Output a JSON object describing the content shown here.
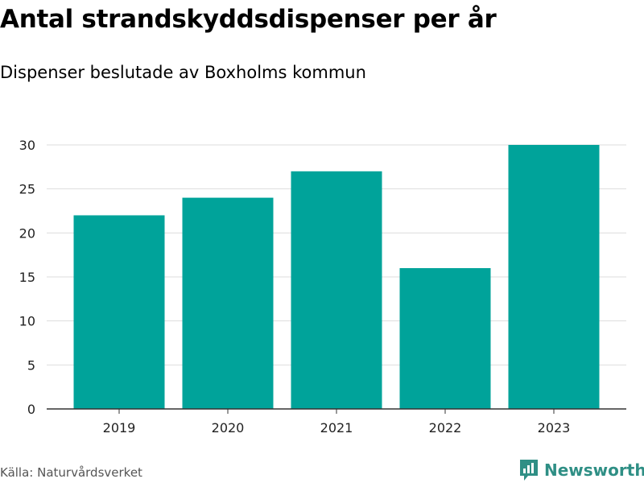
{
  "header": {
    "title": "Antal strandskyddsdispenser per år",
    "subtitle": "Dispenser beslutade av Boxholms kommun"
  },
  "footer": {
    "source": "Källa: Naturvårdsverket",
    "brand": "Newsworthy"
  },
  "colors": {
    "bar": "#00a39a",
    "grid": "#dddddd",
    "axis": "#333333",
    "brand": "#2f8f85"
  },
  "chart_data": {
    "type": "bar",
    "categories": [
      "2019",
      "2020",
      "2021",
      "2022",
      "2023"
    ],
    "values": [
      22,
      24,
      27,
      16,
      30
    ],
    "title": "Antal strandskyddsdispenser per år",
    "subtitle": "Dispenser beslutade av Boxholms kommun",
    "xlabel": "",
    "ylabel": "",
    "ylim": [
      0,
      30
    ],
    "yticks": [
      0,
      5,
      10,
      15,
      20,
      25,
      30
    ],
    "grid": true,
    "legend": "none"
  }
}
